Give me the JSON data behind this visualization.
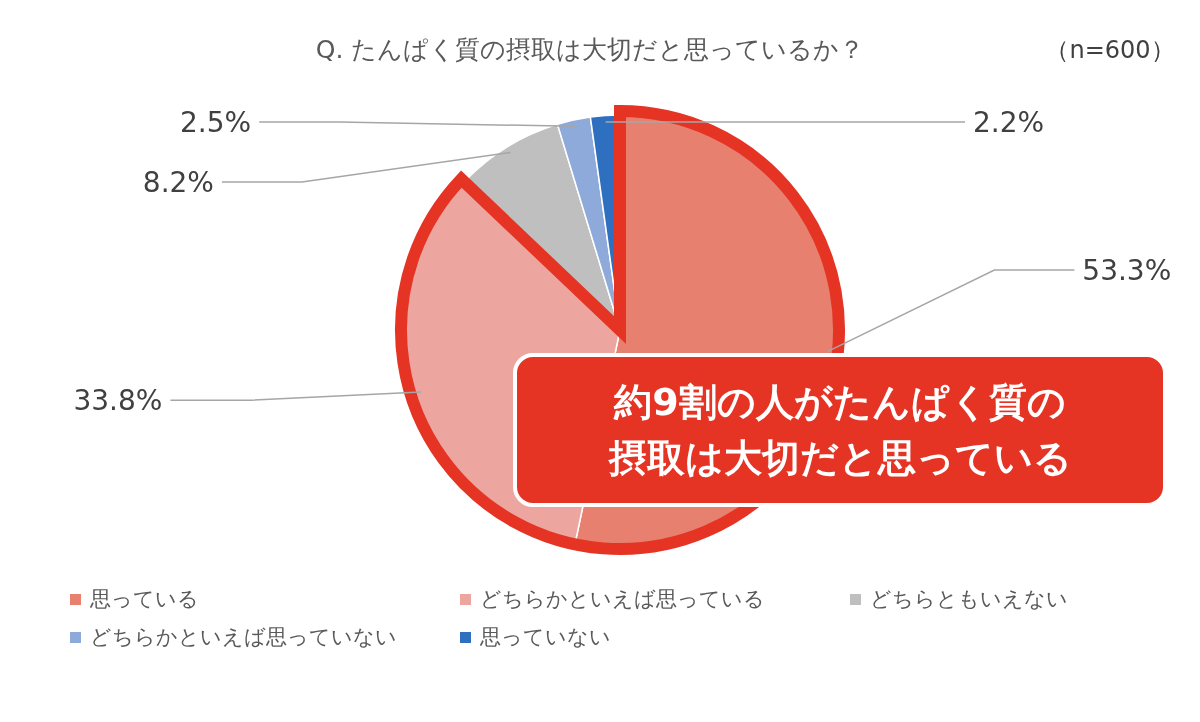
{
  "chart_data": {
    "type": "pie",
    "title": "Q. たんぱく質の摂取は大切だと思っているか？",
    "categories": [
      "思っている",
      "どちらかといえば思っている",
      "どちらともいえない",
      "どちらかといえば思っていない",
      "思っていない"
    ],
    "values": [
      53.3,
      33.8,
      8.2,
      2.5,
      2.2
    ],
    "colors": [
      "#e8806f",
      "#eda5a0",
      "#bfbfbf",
      "#8eaadb",
      "#2e6fc0"
    ],
    "value_labels": [
      "53.3%",
      "33.8%",
      "8.2%",
      "2.5%",
      "2.2%"
    ],
    "legend": "bottom",
    "annotations": [
      "（n=600）",
      "約9割の人がたんぱく質の",
      "摂取は大切だと思っている"
    ]
  }
}
